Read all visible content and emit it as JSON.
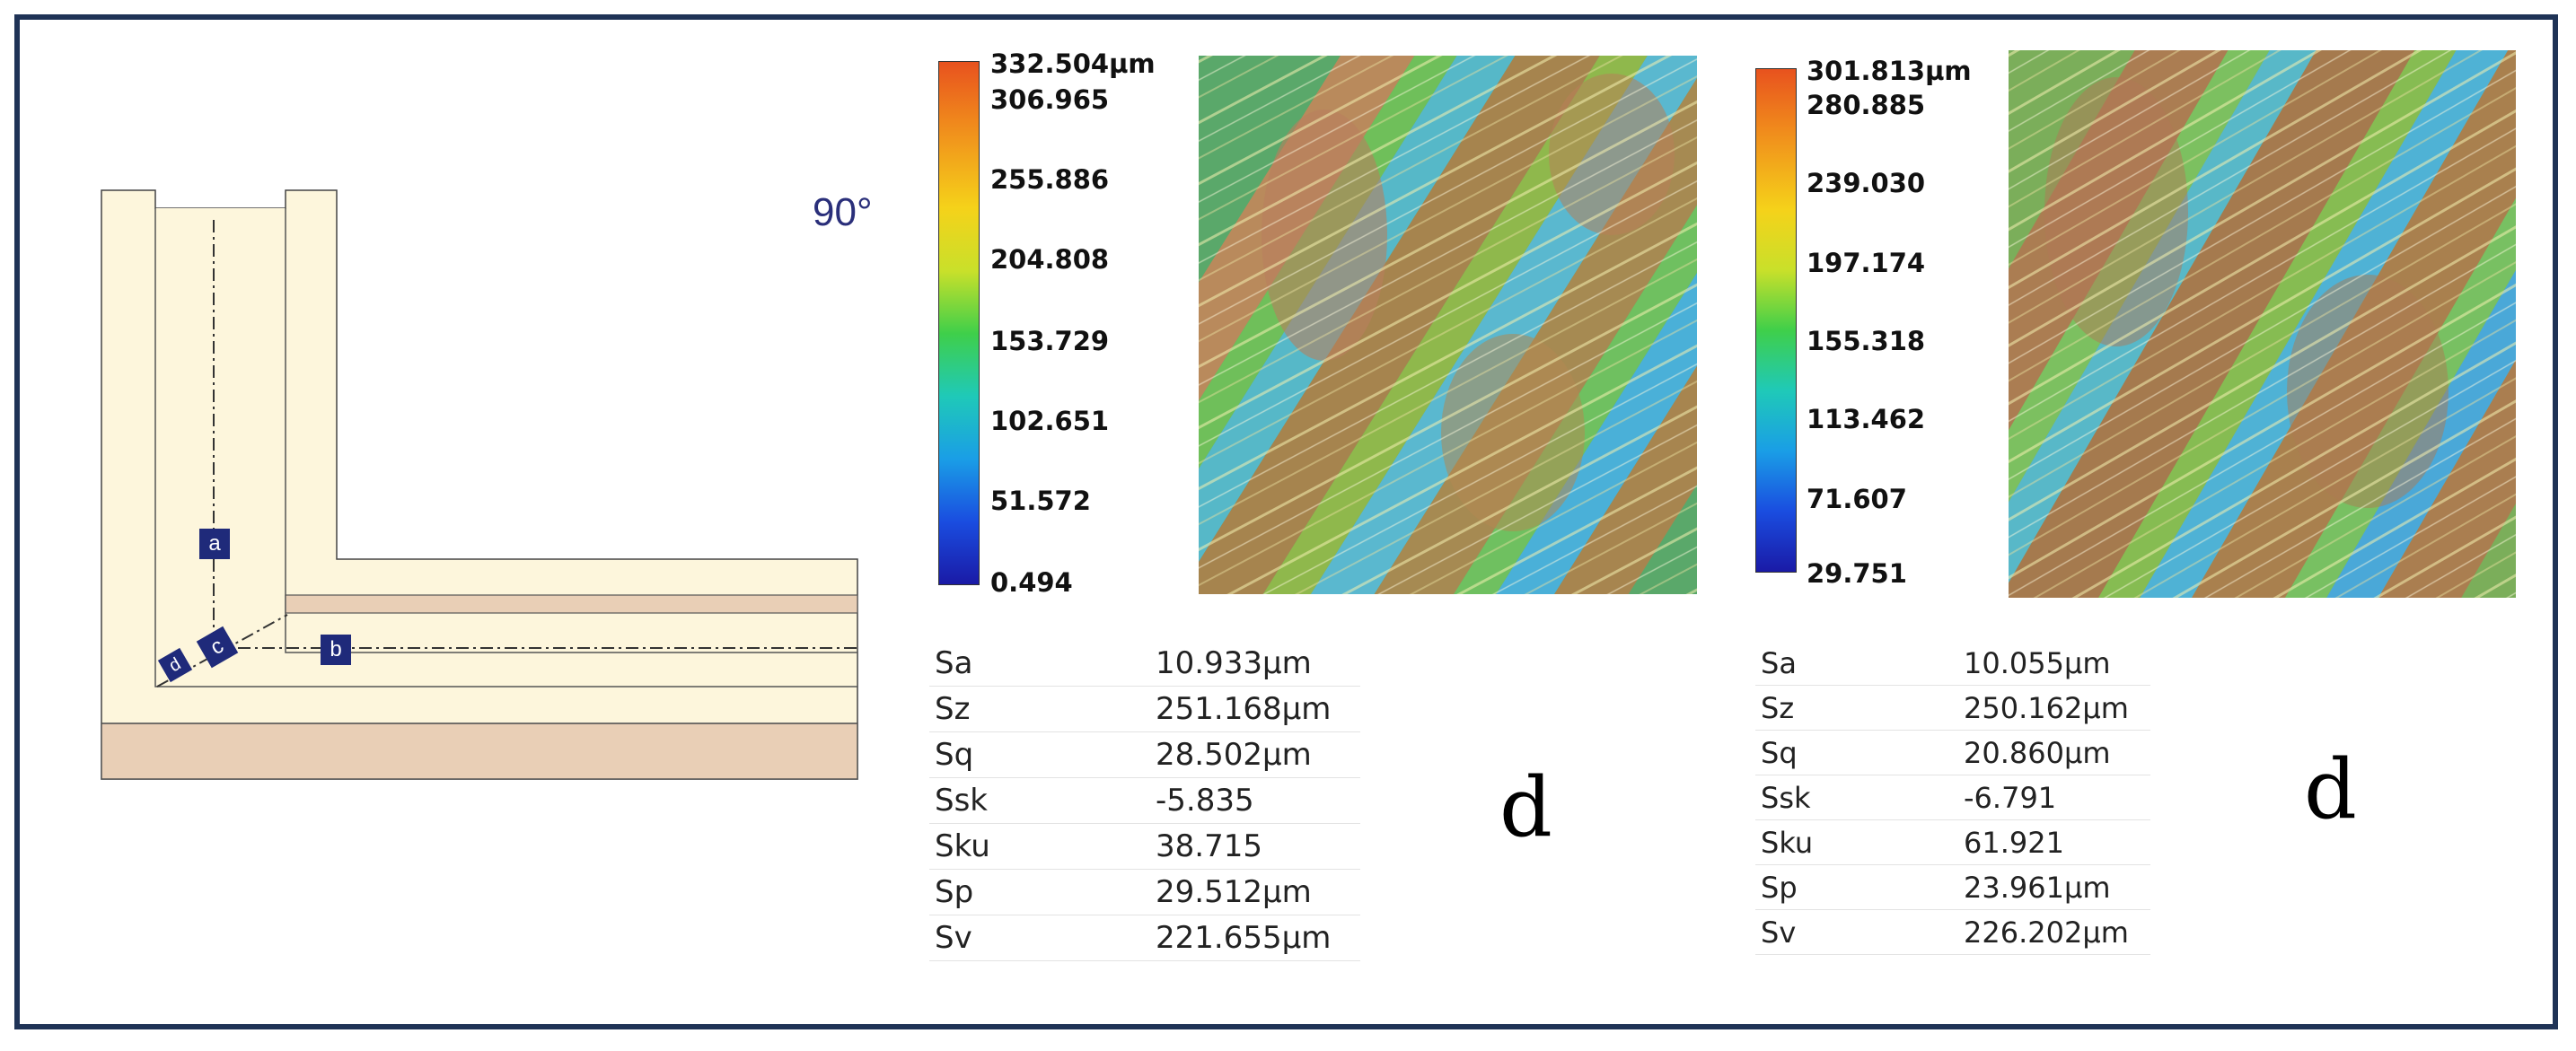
{
  "diagram": {
    "angle_label": "90°",
    "point_labels": [
      "a",
      "b",
      "c",
      "d"
    ]
  },
  "panel1": {
    "colorbar_ticks": [
      "332.504µm",
      "306.965",
      "255.886",
      "204.808",
      "153.729",
      "102.651",
      "51.572",
      "0.494"
    ],
    "params": [
      {
        "name": "Sa",
        "value": "10.933µm"
      },
      {
        "name": "Sz",
        "value": "251.168µm"
      },
      {
        "name": "Sq",
        "value": "28.502µm"
      },
      {
        "name": "Ssk",
        "value": "-5.835"
      },
      {
        "name": "Sku",
        "value": "38.715"
      },
      {
        "name": "Sp",
        "value": "29.512µm"
      },
      {
        "name": "Sv",
        "value": "221.655µm"
      }
    ],
    "label": "d"
  },
  "panel2": {
    "colorbar_ticks": [
      "301.813µm",
      "280.885",
      "239.030",
      "197.174",
      "155.318",
      "113.462",
      "71.607",
      "29.751"
    ],
    "params": [
      {
        "name": "Sa",
        "value": "10.055µm"
      },
      {
        "name": "Sz",
        "value": "250.162µm"
      },
      {
        "name": "Sq",
        "value": "20.860µm"
      },
      {
        "name": "Ssk",
        "value": "-6.791"
      },
      {
        "name": "Sku",
        "value": "61.921"
      },
      {
        "name": "Sp",
        "value": "23.961µm"
      },
      {
        "name": "Sv",
        "value": "226.202µm"
      }
    ],
    "label": "d"
  },
  "colors": {
    "frame": "#1f3356",
    "diagram_fill": "#fdf6dc",
    "diagram_layer": "#e9cfb6",
    "label_box": "#1f2a7a"
  }
}
